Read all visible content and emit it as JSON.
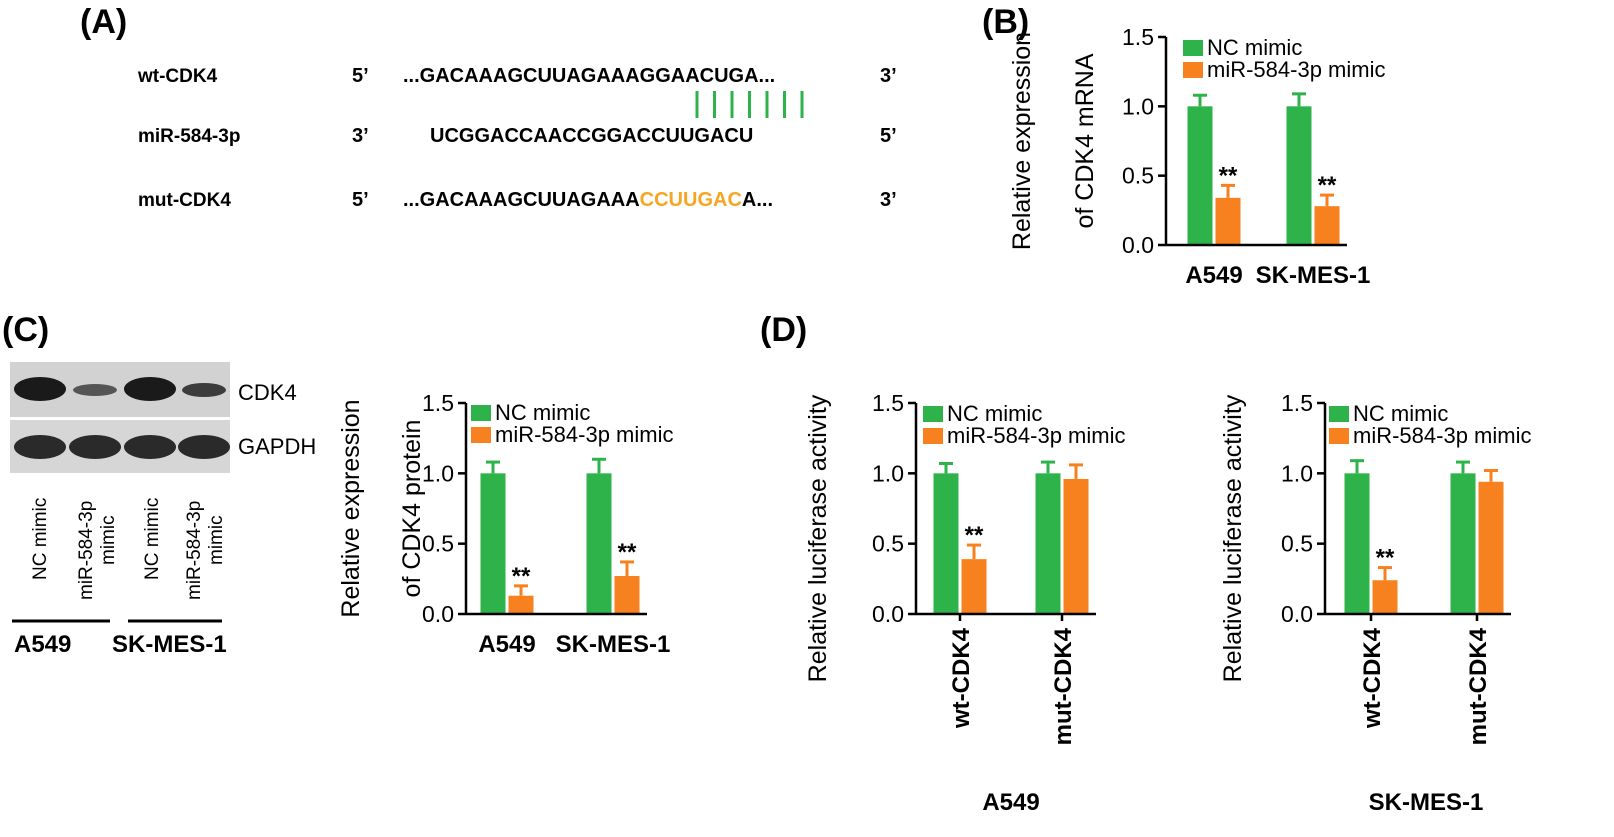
{
  "panels": {
    "A": {
      "label": "(A)",
      "rows": [
        {
          "name": "wt-CDK4",
          "left_end": "5’",
          "seq_prefix": "...GACAAAGCUUAGAAAGGAACUGA...",
          "seq_highlight": "",
          "seq_suffix": "",
          "right_end": "3’"
        },
        {
          "name": "miR-584-3p",
          "left_end": "3’",
          "seq_prefix": "UCGGACCAACCGGACCUUGACU",
          "seq_highlight": "",
          "seq_suffix": "",
          "right_end": "5’"
        },
        {
          "name": "mut-CDK4",
          "left_end": "5’",
          "seq_prefix": "...GACAAAGCUUAGAAA",
          "seq_highlight": "CCUUGAC",
          "seq_suffix": "A...",
          "right_end": "3’"
        }
      ],
      "pairing_lines": 7,
      "highlight_color": "#f5a623",
      "pair_color": "#2db34a"
    },
    "B": {
      "label": "(B)"
    },
    "C": {
      "label": "(C)",
      "blot": {
        "bands": [
          "CDK4",
          "GAPDH"
        ],
        "lanes": [
          {
            "line1": "NC mimic",
            "line2": ""
          },
          {
            "line1": "miR-584-3p",
            "line2": "mimic"
          },
          {
            "line1": "NC mimic",
            "line2": ""
          },
          {
            "line1": "miR-584-3p",
            "line2": "mimic"
          }
        ],
        "groups": [
          "A549",
          "SK-MES-1"
        ]
      }
    },
    "D": {
      "label": "(D)",
      "groups": [
        "A549",
        "SK-MES-1"
      ]
    }
  },
  "chart_data": [
    {
      "id": "B",
      "type": "bar",
      "ylabel": [
        "Relative expression",
        "of CDK4 mRNA"
      ],
      "ylim": [
        0,
        1.5
      ],
      "yticks": [
        "0.0",
        "0.5",
        "1.0",
        "1.5"
      ],
      "categories": [
        "A549",
        "SK-MES-1"
      ],
      "category_rotated": false,
      "series": [
        {
          "name": "NC mimic",
          "color": "#2db34a",
          "values": [
            1.0,
            1.0
          ],
          "errors": [
            0.08,
            0.09
          ],
          "significance": [
            "",
            ""
          ]
        },
        {
          "name": "miR-584-3p mimic",
          "color": "#f7811e",
          "values": [
            0.34,
            0.28
          ],
          "errors": [
            0.09,
            0.08
          ],
          "significance": [
            "**",
            "**"
          ]
        }
      ],
      "legend": "top-left"
    },
    {
      "id": "C",
      "type": "bar",
      "ylabel": [
        "Relative expression",
        "of CDK4 protein"
      ],
      "ylim": [
        0,
        1.5
      ],
      "yticks": [
        "0.0",
        "0.5",
        "1.0",
        "1.5"
      ],
      "categories": [
        "A549",
        "SK-MES-1"
      ],
      "category_rotated": false,
      "series": [
        {
          "name": "NC mimic",
          "color": "#2db34a",
          "values": [
            1.0,
            1.0
          ],
          "errors": [
            0.08,
            0.1
          ],
          "significance": [
            "",
            ""
          ]
        },
        {
          "name": "miR-584-3p mimic",
          "color": "#f7811e",
          "values": [
            0.13,
            0.27
          ],
          "errors": [
            0.07,
            0.1
          ],
          "significance": [
            "**",
            "**"
          ]
        }
      ],
      "legend": "top-left"
    },
    {
      "id": "D1",
      "type": "bar",
      "ylabel": [
        "Relative luciferase activity"
      ],
      "ylim": [
        0,
        1.5
      ],
      "yticks": [
        "0.0",
        "0.5",
        "1.0",
        "1.5"
      ],
      "categories": [
        "wt-CDK4",
        "mut-CDK4"
      ],
      "category_rotated": true,
      "series": [
        {
          "name": "NC mimic",
          "color": "#2db34a",
          "values": [
            1.0,
            1.0
          ],
          "errors": [
            0.07,
            0.08
          ],
          "significance": [
            "",
            ""
          ]
        },
        {
          "name": "miR-584-3p mimic",
          "color": "#f7811e",
          "values": [
            0.39,
            0.96
          ],
          "errors": [
            0.1,
            0.1
          ],
          "significance": [
            "**",
            ""
          ]
        }
      ],
      "legend": "top-left"
    },
    {
      "id": "D2",
      "type": "bar",
      "ylabel": [
        "Relative luciferase activity"
      ],
      "ylim": [
        0,
        1.5
      ],
      "yticks": [
        "0.0",
        "0.5",
        "1.0",
        "1.5"
      ],
      "categories": [
        "wt-CDK4",
        "mut-CDK4"
      ],
      "category_rotated": true,
      "series": [
        {
          "name": "NC mimic",
          "color": "#2db34a",
          "values": [
            1.0,
            1.0
          ],
          "errors": [
            0.09,
            0.08
          ],
          "significance": [
            "",
            ""
          ]
        },
        {
          "name": "miR-584-3p mimic",
          "color": "#f7811e",
          "values": [
            0.24,
            0.94
          ],
          "errors": [
            0.09,
            0.08
          ],
          "significance": [
            "**",
            ""
          ]
        }
      ],
      "legend": "top-left"
    }
  ]
}
